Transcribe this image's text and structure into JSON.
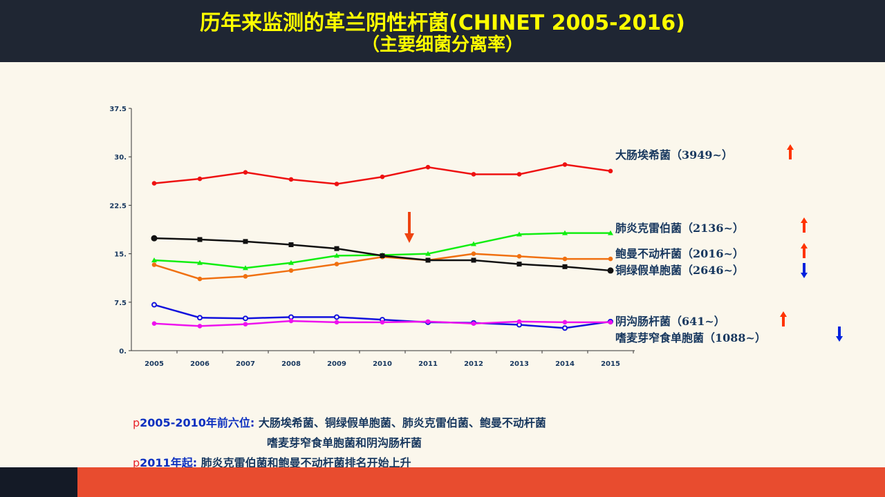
{
  "slide": {
    "title_line1": "历年来监测的革兰阴性杆菌(CHINET 2005-2016)",
    "title_line2": "（主要细菌分离率）"
  },
  "chart_data": {
    "type": "line",
    "x": [
      "2005",
      "2006",
      "2007",
      "2008",
      "2009",
      "2010",
      "2011",
      "2012",
      "2013",
      "2014",
      "2015"
    ],
    "ylim": [
      0,
      37.5
    ],
    "yticks": [
      "0.",
      "7.5",
      "15.",
      "22.5",
      "30.",
      "37.5"
    ],
    "series": [
      {
        "name": "大肠埃希菌（3949~）",
        "color": "#ee1111",
        "marker": "dot",
        "values": [
          25.9,
          26.6,
          27.6,
          26.5,
          25.8,
          26.9,
          28.4,
          27.3,
          27.3,
          28.8,
          27.8
        ],
        "trend": "up",
        "trend_color": "#ff3300"
      },
      {
        "name": "肺炎克雷伯菌（2136~）",
        "color": "#11ee11",
        "marker": "triangle",
        "values": [
          14.0,
          13.6,
          12.8,
          13.6,
          14.7,
          14.8,
          15.0,
          16.5,
          18.0,
          18.2,
          18.2
        ],
        "trend": "up",
        "trend_color": "#ff3300"
      },
      {
        "name": "鲍曼不动杆菌（2016~）",
        "color": "#f07010",
        "marker": "dot",
        "values": [
          13.3,
          11.1,
          11.5,
          12.4,
          13.4,
          14.5,
          14.0,
          15.0,
          14.6,
          14.2,
          14.2
        ],
        "trend": "up",
        "trend_color": "#ff3300"
      },
      {
        "name": "铜绿假单胞菌（2646~）",
        "color": "#111111",
        "marker": "square",
        "values": [
          17.4,
          17.2,
          16.9,
          16.4,
          15.8,
          14.7,
          14.0,
          14.0,
          13.4,
          13.0,
          12.4
        ],
        "trend": "down",
        "trend_color": "#0022dd"
      },
      {
        "name": "阴沟肠杆菌（641~）",
        "color": "#1111dd",
        "marker": "ring",
        "values": [
          7.1,
          5.1,
          5.0,
          5.2,
          5.2,
          4.8,
          4.4,
          4.3,
          4.0,
          3.5,
          4.5
        ],
        "trend": "up",
        "trend_color": "#ff3300"
      },
      {
        "name": "嗜麦芽窄食单胞菌（1088~）",
        "color": "#ee11ee",
        "marker": "dot",
        "values": [
          4.2,
          3.8,
          4.1,
          4.6,
          4.4,
          4.4,
          4.5,
          4.2,
          4.5,
          4.4,
          4.4
        ],
        "trend": "down",
        "trend_color": "#0022dd"
      }
    ],
    "annotation_arrow": {
      "at_x": "2011",
      "direction": "down",
      "color": "#ee4411"
    }
  },
  "notes": [
    {
      "bullet": "p",
      "lead": "2005-2010年前六位:",
      "text": "大肠埃希菌、铜绿假单胞菌、肺炎克雷伯菌、鲍曼不动杆菌"
    },
    {
      "bullet": "",
      "lead": "",
      "text": "嗜麦芽窄食单胞菌和阴沟肠杆菌"
    },
    {
      "bullet": "p",
      "lead": "2011年起:",
      "text": "肺炎克雷伯菌和鲍曼不动杆菌排名开始上升"
    }
  ]
}
